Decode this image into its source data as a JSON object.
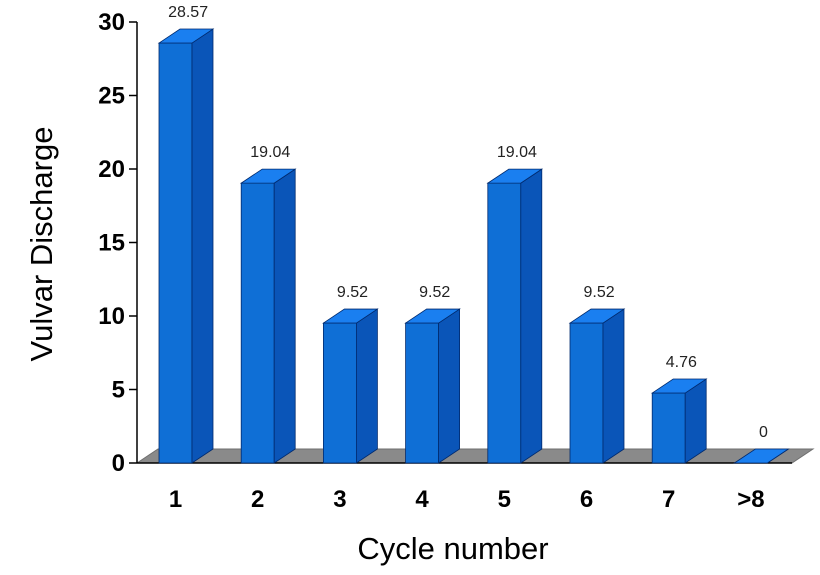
{
  "chart_data": {
    "type": "bar",
    "categories": [
      "1",
      "2",
      "3",
      "4",
      "5",
      "6",
      "7",
      ">8"
    ],
    "values": [
      28.57,
      19.04,
      9.52,
      9.52,
      19.04,
      9.52,
      4.76,
      0
    ],
    "data_labels": [
      "28.57",
      "19.04",
      "9.52",
      "9.52",
      "19.04",
      "9.52",
      "4.76",
      "0"
    ],
    "xlabel": "Cycle number",
    "ylabel": "Vulvar Discharge",
    "ylim": [
      0,
      30
    ],
    "yticks": [
      "0",
      "5",
      "10",
      "15",
      "20",
      "25",
      "30"
    ],
    "grid": false,
    "three_d": true,
    "colors": {
      "bar_front": "#0f6fd6",
      "bar_side": "#0a55b8",
      "bar_top": "#1a7ff0",
      "bar_edge": "#002a6e",
      "floor": "#8a8a8a",
      "axis": "#000000"
    }
  }
}
